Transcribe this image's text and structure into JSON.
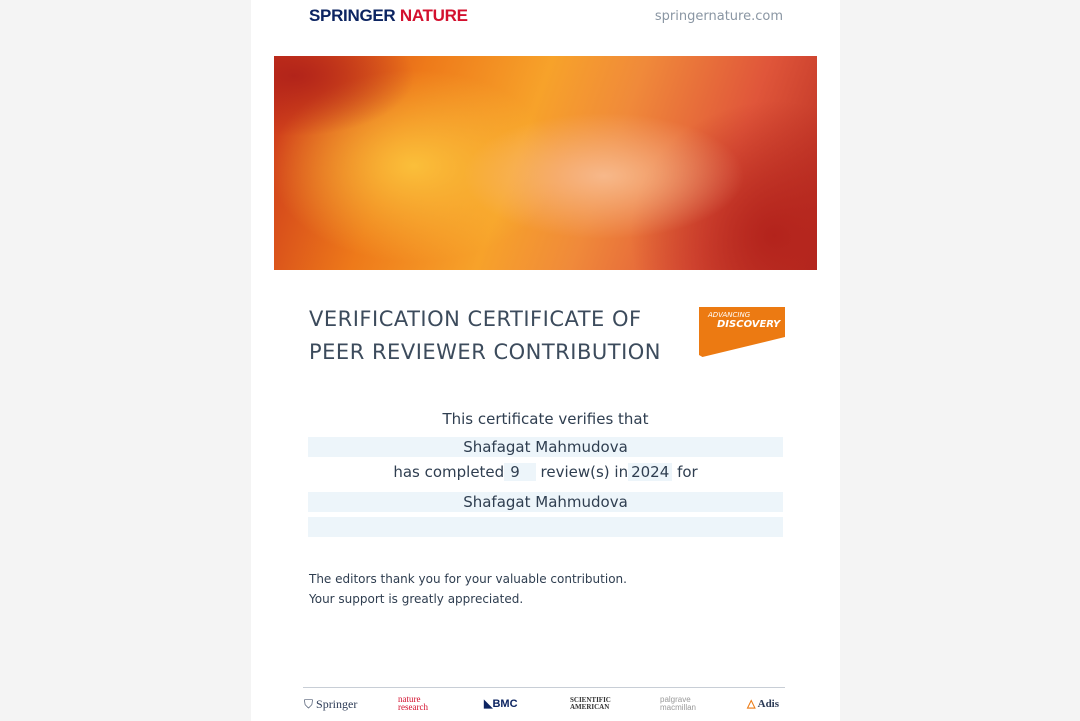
{
  "header": {
    "logo_part1": "SPRINGER",
    "logo_part2": "NATURE",
    "website": "springernature.com"
  },
  "title": {
    "line1": "VERIFICATION CERTIFICATE OF",
    "line2": "PEER REVIEWER CONTRIBUTION"
  },
  "badge": {
    "small": "ADVANCING",
    "large": "DISCOVERY"
  },
  "body": {
    "intro": "This certificate verifies that",
    "reviewer_name": "Shafagat Mahmudova",
    "completed_prefix": "has completed",
    "review_count": "9",
    "reviews_text": "review(s) in",
    "year": "2024",
    "for_text": "for",
    "journal": "Shafagat Mahmudova",
    "extra": ""
  },
  "thanks": {
    "line1": "The editors thank you for your valuable contribution.",
    "line2": "Your support is greatly appreciated."
  },
  "footer": {
    "logos": [
      "Springer",
      "nature research",
      "BMC",
      "SCIENTIFIC AMERICAN",
      "palgrave macmillan",
      "Adis"
    ]
  },
  "colors": {
    "brand_navy": "#0c2461",
    "brand_red": "#d3102e",
    "badge_orange": "#ec7a12"
  }
}
